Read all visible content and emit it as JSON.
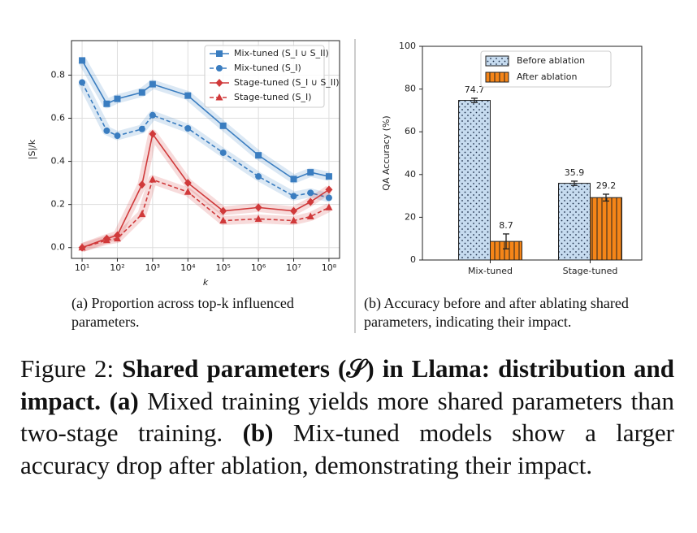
{
  "chart_data": [
    {
      "type": "line",
      "xscale": "log",
      "grid": true,
      "legend": "upper right",
      "xlabel": "k",
      "ylabel": "|S|/k",
      "x": [
        10,
        50,
        100,
        500,
        1000,
        10000,
        100000,
        1000000,
        10000000,
        30000000,
        100000000
      ],
      "xlim": [
        5,
        200000000
      ],
      "xticks": [
        {
          "value": 10,
          "label": "10¹"
        },
        {
          "value": 100,
          "label": "10²"
        },
        {
          "value": 1000,
          "label": "10³"
        },
        {
          "value": 10000,
          "label": "10⁴"
        },
        {
          "value": 100000,
          "label": "10⁵"
        },
        {
          "value": 1000000,
          "label": "10⁶"
        },
        {
          "value": 10000000,
          "label": "10⁷"
        },
        {
          "value": 100000000,
          "label": "10⁸"
        }
      ],
      "ylim": [
        -0.05,
        0.96
      ],
      "yticks": [
        {
          "value": 0,
          "label": "0.0"
        },
        0.2,
        0.4,
        0.6,
        0.8
      ],
      "series": [
        {
          "name": "Mix-tuned (S_I ∪ S_II)",
          "color": "#3a7dc0",
          "marker": "square",
          "dash": false,
          "values": [
            0.868,
            0.667,
            0.69,
            0.72,
            0.758,
            0.705,
            0.565,
            0.428,
            0.318,
            0.349,
            0.33
          ]
        },
        {
          "name": "Mix-tuned (S_I)",
          "color": "#3a7dc0",
          "marker": "circle",
          "dash": true,
          "values": [
            0.766,
            0.542,
            0.519,
            0.55,
            0.614,
            0.553,
            0.44,
            0.33,
            0.239,
            0.254,
            0.231
          ]
        },
        {
          "name": "Stage-tuned (S_I ∪ S_II)",
          "color": "#d0393a",
          "marker": "diamond",
          "dash": false,
          "values": [
            0,
            0.042,
            0.057,
            0.292,
            0.527,
            0.3,
            0.17,
            0.186,
            0.17,
            0.212,
            0.269
          ]
        },
        {
          "name": "Stage-tuned (S_I)",
          "color": "#d0393a",
          "marker": "triangle",
          "dash": true,
          "values": [
            0,
            0.034,
            0.042,
            0.155,
            0.315,
            0.258,
            0.125,
            0.133,
            0.125,
            0.144,
            0.186
          ]
        }
      ],
      "caption": "(a) Proportion across top-k influenced parameters."
    },
    {
      "type": "bar",
      "legend": "upper right",
      "ylabel": "QA Accuracy (%)",
      "categories": [
        "Mix-tuned",
        "Stage-tuned"
      ],
      "ylim": [
        0,
        100
      ],
      "yticks": [
        0,
        20,
        40,
        60,
        80,
        100
      ],
      "series": [
        {
          "name": "Before ablation",
          "color": "#c6dbef",
          "hatch": "dots",
          "values": [
            74.7,
            35.9
          ],
          "errors": [
            1.0,
            1.0
          ]
        },
        {
          "name": "After ablation",
          "color": "#f58518",
          "hatch": "vertical",
          "values": [
            8.7,
            29.2
          ],
          "errors": [
            3.5,
            1.6
          ]
        }
      ],
      "caption": "(b) Accuracy before and after ablating shared parameters, indicating their impact."
    }
  ],
  "figure_caption": {
    "label": "Figure 2: ",
    "title": "Shared parameters (𝒮) in Llama: distribution and impact.",
    "part_a_label": "(a)",
    "part_a": " Mixed training yields more shared parameters than two-stage training. ",
    "part_b_label": "(b)",
    "part_b": " Mix-tuned models show a larger accuracy drop after ablation, demonstrating their impact."
  }
}
